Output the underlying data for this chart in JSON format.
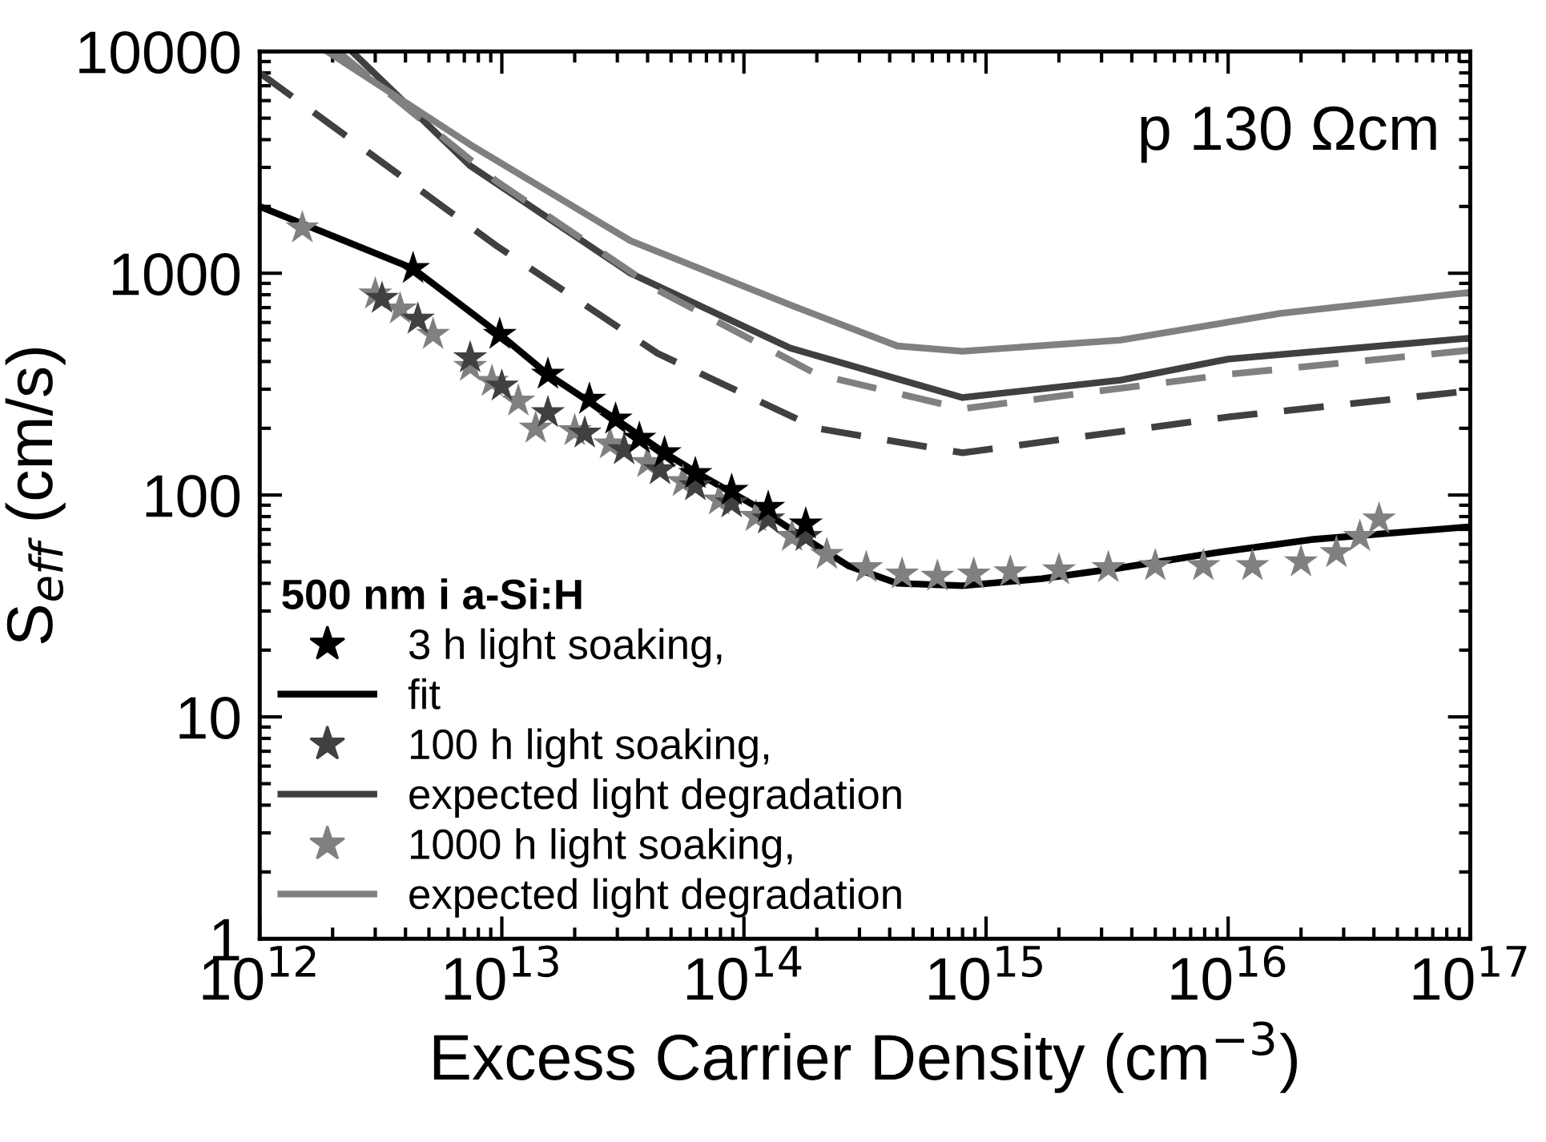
{
  "chart_data": {
    "type": "line",
    "xlabel": "Excess Carrier Density (cm$^{−3}$)",
    "ylabel": "S$_{eff}$ (cm/s)",
    "legend_title": "500 nm i a-Si:H",
    "legend": "bottom left",
    "log": "xy",
    "grid": false,
    "xlim": [
      1000000000000.0,
      1e+17
    ],
    "ylim": [
      1,
      10000
    ],
    "xticks": [
      {
        "value": 1000000000000.0,
        "label": "10$^{12}$"
      },
      {
        "value": 10000000000000.0,
        "label": "10$^{13}$"
      },
      {
        "value": 100000000000000.0,
        "label": "10$^{14}$"
      },
      {
        "value": 1000000000000000.0,
        "label": "10$^{15}$"
      },
      {
        "value": 1e+16,
        "label": "10$^{16}$"
      },
      {
        "value": 1e+17,
        "label": "10$^{17}$"
      }
    ],
    "yticks": [
      1,
      10,
      100,
      1000,
      10000
    ],
    "annotations": [
      "p 130 Ωcm"
    ],
    "series": [
      {
        "name": "3 h light soaking,",
        "type": "scatter",
        "marker": "star",
        "color": "#000000",
        "x": [
          4300000000000.0,
          9800000000000.0,
          15500000000000.0,
          23000000000000.0,
          29500000000000.0,
          37000000000000.0,
          47000000000000.0,
          63000000000000.0,
          89000000000000.0,
          126000000000000.0,
          180000000000000.0
        ],
        "values": [
          1050,
          530,
          350,
          270,
          220,
          180,
          155,
          125,
          105,
          88,
          74
        ]
      },
      {
        "name": "fit",
        "marker": "none",
        "line_style": "solid",
        "color": "#000000",
        "x": [
          1000000000000.0,
          4300000000000.0,
          9800000000000.0,
          15500000000000.0,
          29500000000000.0,
          47000000000000.0,
          69000000000000.0,
          110000000000000.0,
          174000000000000.0,
          270000000000000.0,
          430000000000000.0,
          800000000000000.0,
          1700000000000000.0,
          3600000000000000.0,
          8900000000000000.0,
          2.2e+16,
          1e+17
        ],
        "values": [
          2000,
          1050,
          530,
          350,
          220,
          155,
          120,
          90,
          65,
          48,
          40,
          39,
          42,
          47,
          55,
          63,
          72
        ]
      },
      {
        "name": "100 h light soaking,",
        "type": "scatter",
        "marker": "star",
        "color": "#404040",
        "x": [
          3200000000000.0,
          4500000000000.0,
          7400000000000.0,
          10000000000000.0,
          15500000000000.0,
          22000000000000.0,
          32000000000000.0,
          45000000000000.0,
          63000000000000.0,
          89000000000000.0,
          126000000000000.0,
          180000000000000.0
        ],
        "values": [
          770,
          620,
          415,
          310,
          235,
          190,
          160,
          130,
          110,
          92,
          78,
          65
        ]
      },
      {
        "name": "expected light degradation",
        "marker": "none",
        "line_style": "solid",
        "color": "#404040",
        "x": [
          2400000000000.0,
          7400000000000.0,
          34000000000000.0,
          155000000000000.0,
          800000000000000.0,
          3600000000000000.0,
          1e+16,
          1e+17
        ],
        "values": [
          10000,
          3050,
          1000,
          460,
          275,
          330,
          410,
          510
        ]
      },
      {
        "name": "1000 h light soaking,",
        "type": "scatter",
        "marker": "star",
        "color": "#808080",
        "x": [
          1500000000000.0,
          3000000000000.0,
          3800000000000.0,
          5200000000000.0,
          7400000000000.0,
          9100000000000.0,
          11700000000000.0,
          13800000000000.0,
          20000000000000.0,
          28000000000000.0,
          40000000000000.0,
          56000000000000.0,
          79000000000000.0,
          112000000000000.0,
          158000000000000.0,
          220000000000000.0,
          320000000000000.0,
          450000000000000.0,
          630000000000000.0,
          890000000000000.0,
          1260000000000000.0,
          2000000000000000.0,
          3200000000000000.0,
          5000000000000000.0,
          7900000000000000.0,
          1.26e+16,
          2e+16,
          2.8e+16,
          3.5e+16,
          4.2e+16
        ],
        "values": [
          1600,
          805,
          690,
          530,
          380,
          325,
          265,
          200,
          195,
          170,
          140,
          115,
          95,
          80,
          65,
          54,
          47,
          44,
          43,
          44,
          45,
          46,
          47,
          48,
          48,
          48,
          50,
          55,
          65,
          78
        ]
      },
      {
        "name": "expected light degradation",
        "marker": "none",
        "line_style": "solid",
        "color": "#808080",
        "x": [
          1900000000000.0,
          7400000000000.0,
          34000000000000.0,
          155000000000000.0,
          430000000000000.0,
          800000000000000.0,
          3600000000000000.0,
          1.66e+16,
          1e+17
        ],
        "values": [
          10000,
          3800,
          1400,
          720,
          470,
          445,
          500,
          660,
          820
        ]
      },
      {
        "marker": "none",
        "line_style": "dashed",
        "color": "#808080",
        "x": [
          2100000000000.0,
          9500000000000.0,
          44000000000000.0,
          200000000000000.0,
          800000000000000.0,
          1e+16,
          1e+17
        ],
        "values": [
          10000,
          2600,
          840,
          350,
          245,
          350,
          450
        ]
      },
      {
        "marker": "none",
        "line_style": "dashed",
        "color": "#404040",
        "x": [
          1000000000000.0,
          9500000000000.0,
          44000000000000.0,
          200000000000000.0,
          800000000000000.0,
          1e+16,
          1e+17
        ],
        "values": [
          8000,
          1330,
          435,
          200,
          155,
          225,
          295
        ]
      }
    ]
  }
}
